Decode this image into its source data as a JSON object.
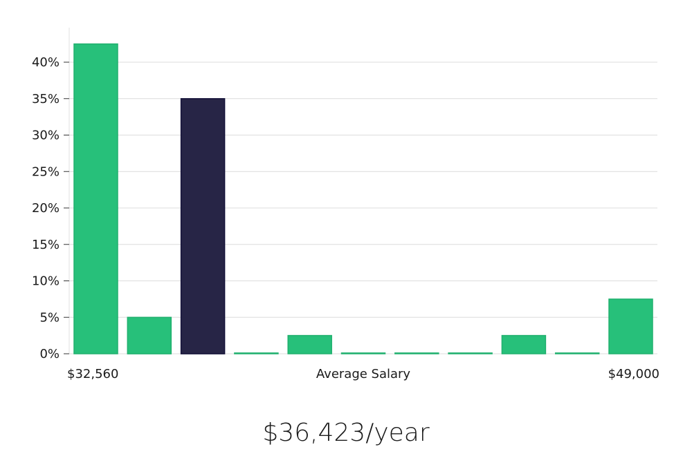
{
  "chart_data": {
    "type": "bar",
    "title": "",
    "xlabel": "Average Salary",
    "ylabel": "",
    "x_range_labels": {
      "min": "$32,560",
      "max": "$49,000"
    },
    "ylim": [
      0,
      45
    ],
    "yticks": [
      0,
      5,
      10,
      15,
      20,
      25,
      30,
      35,
      40
    ],
    "ytick_labels": [
      "0%",
      "5%",
      "10%",
      "15%",
      "20%",
      "25%",
      "30%",
      "35%",
      "40%"
    ],
    "values": [
      42.5,
      5,
      35,
      0.1,
      2.5,
      0.1,
      0.1,
      0.1,
      2.5,
      0.1,
      7.5
    ],
    "highlight_index": 2,
    "colors": {
      "bar": "#27c07a",
      "bar_edge": "#20b06e",
      "highlight": "#272546",
      "highlight_edge": "#15133a",
      "grid": "#dcdcdc",
      "axis": "#e0e0e0"
    },
    "grid": true
  },
  "summary": {
    "average_salary": "$36,423/year"
  }
}
